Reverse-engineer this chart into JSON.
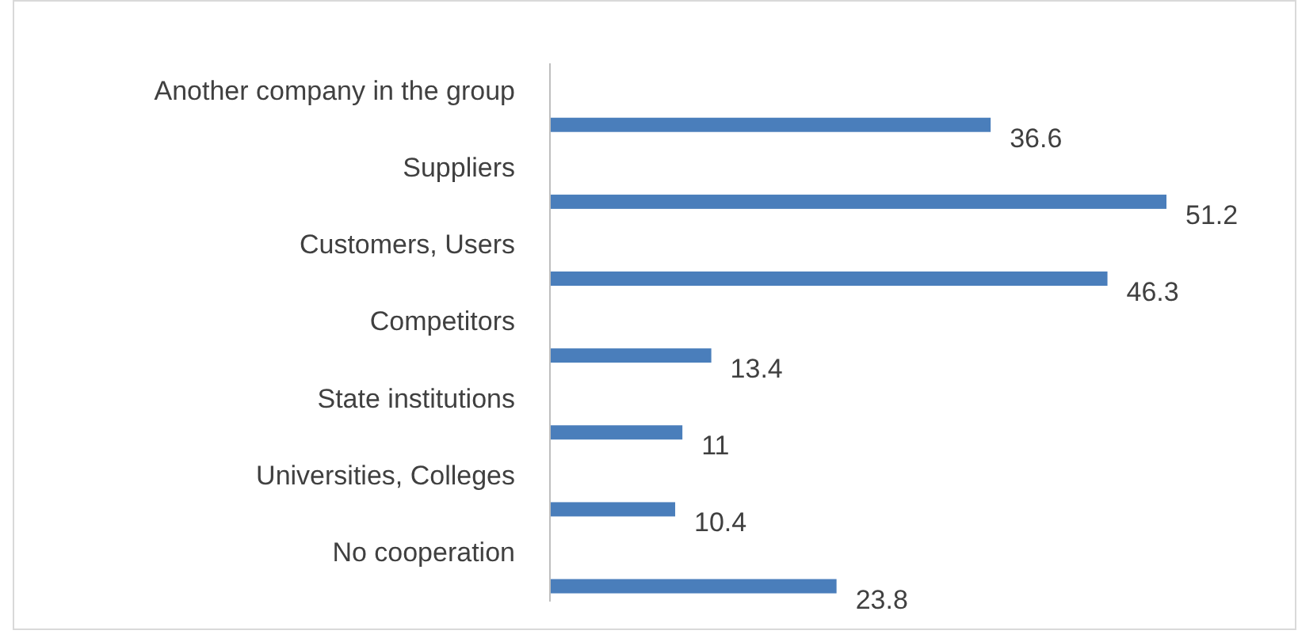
{
  "chart_data": {
    "type": "bar",
    "orientation": "horizontal",
    "categories": [
      "Another company in the group",
      "Suppliers",
      "Customers, Users",
      "Competitors",
      "State institutions",
      "Universities, Colleges",
      "No cooperation"
    ],
    "values": [
      36.6,
      51.2,
      46.3,
      13.4,
      11,
      10.4,
      23.8
    ],
    "color": "#4a7ebb",
    "data_labels": true
  }
}
